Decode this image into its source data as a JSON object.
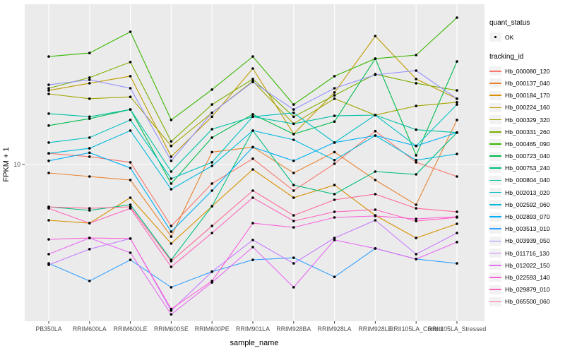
{
  "legend": {
    "quant_status_title": "quant_status",
    "ok_label": "OK",
    "tracking_title": "tracking_id"
  },
  "chart_data": {
    "type": "line",
    "title": "",
    "xlabel": "sample_name",
    "ylabel": "FPKM + 1",
    "y_scale": "log10",
    "ylim": [
      1.2,
      82
    ],
    "y_ticks": [
      10
    ],
    "y_tick_labels": [
      "10"
    ],
    "grid": "on",
    "legend_position": "right",
    "panel_bg": "#EBEBEB",
    "grid_color": "#FFFFFF",
    "tick_color": "#333333",
    "point_color": "#000000",
    "x_categories": [
      "PB350LA",
      "RRIM600LA",
      "RRIM600LE",
      "RRIM600SE",
      "RRIM600PE",
      "RRIM901LA",
      "RRIM928BA",
      "RRIM928LA",
      "RRIM928LE",
      "RRII105LA_Control",
      "RRII105LA_Stressed"
    ],
    "series": [
      {
        "name": "Hb_000080_120",
        "color": "#F8766D",
        "values": [
          11.6,
          11.1,
          10.3,
          4.41,
          7.76,
          10.8,
          7.06,
          10.1,
          15.6,
          10.3,
          8.52
        ]
      },
      {
        "name": "Hb_000137_040",
        "color": "#EA8331",
        "values": [
          8.93,
          8.52,
          8.13,
          3.83,
          11.8,
          12.6,
          8.93,
          11.8,
          8.13,
          5.85,
          18.1
        ]
      },
      {
        "name": "Hb_000184_170",
        "color": "#D89000",
        "values": [
          4.76,
          4.58,
          6.43,
          3.49,
          5.74,
          9.36,
          6.43,
          7.61,
          5.08,
          3.76,
          4.54
        ]
      },
      {
        "name": "Hb_000224_160",
        "color": "#C09B00",
        "values": [
          26.8,
          29.5,
          32.4,
          11.1,
          18.9,
          35.9,
          15.0,
          26.1,
          55.3,
          31.2,
          24.0
        ]
      },
      {
        "name": "Hb_000329_320",
        "color": "#A3A500",
        "values": [
          25.6,
          24.0,
          24.6,
          12.8,
          19.9,
          30.3,
          17.2,
          24.0,
          19.3,
          21.8,
          22.9
        ]
      },
      {
        "name": "Hb_000331_260",
        "color": "#7CAE00",
        "values": [
          27.6,
          31.8,
          39.1,
          13.6,
          22.2,
          31.2,
          18.9,
          25.1,
          33.3,
          29.5,
          26.8
        ]
      },
      {
        "name": "Hb_000465_090",
        "color": "#39B600",
        "values": [
          42.1,
          44.1,
          58.5,
          18.1,
          27.1,
          42.1,
          22.2,
          32.4,
          40.9,
          42.9,
          70.6
        ]
      },
      {
        "name": "Hb_000723_040",
        "color": "#00BB4E",
        "values": [
          16.8,
          18.4,
          20.8,
          7.76,
          14.3,
          19.5,
          15.0,
          17.7,
          40.9,
          11.3,
          39.4
        ]
      },
      {
        "name": "Hb_000753_240",
        "color": "#00BF7D",
        "values": [
          5.69,
          5.43,
          5.85,
          2.81,
          5.74,
          15.7,
          7.61,
          6.74,
          9.1,
          8.77,
          15.3
        ]
      },
      {
        "name": "Hb_000804_040",
        "color": "#00C1A3",
        "values": [
          19.7,
          18.9,
          20.8,
          9.1,
          16.0,
          18.9,
          17.2,
          19.1,
          19.3,
          15.9,
          15.3
        ]
      },
      {
        "name": "Hb_002013_020",
        "color": "#00BFC4",
        "values": [
          13.4,
          14.3,
          18.1,
          8.29,
          10.3,
          18.9,
          19.9,
          13.4,
          19.3,
          12.8,
          22.2
        ]
      },
      {
        "name": "Hb_002592_060",
        "color": "#00BADE",
        "values": [
          11.6,
          12.4,
          15.7,
          7.19,
          9.81,
          15.7,
          13.9,
          10.6,
          14.7,
          10.6,
          11.5
        ]
      },
      {
        "name": "Hb_002893_070",
        "color": "#00B0F6",
        "values": [
          10.5,
          11.7,
          9.54,
          4.09,
          7.06,
          12.6,
          10.5,
          13.4,
          14.7,
          12.8,
          15.3
        ]
      },
      {
        "name": "Hb_003513_010",
        "color": "#35A2FF",
        "values": [
          2.68,
          2.12,
          2.81,
          1.95,
          2.4,
          2.81,
          2.89,
          2.24,
          3.27,
          2.84,
          2.68
        ]
      },
      {
        "name": "Hb_003939_050",
        "color": "#9590FF",
        "values": [
          28.9,
          30.9,
          27.6,
          10.5,
          19.9,
          30.0,
          20.8,
          27.6,
          33.0,
          34.9,
          24.0
        ]
      },
      {
        "name": "Hb_011716_130",
        "color": "#C77CFF",
        "values": [
          2.63,
          3.24,
          3.73,
          1.43,
          2.4,
          3.66,
          2.68,
          3.76,
          4.76,
          3.03,
          4.02
        ]
      },
      {
        "name": "Hb_012022_150",
        "color": "#E76BF3",
        "values": [
          3.03,
          3.76,
          3.09,
          1.36,
          2.08,
          3.33,
          1.95,
          3.66,
          3.27,
          2.84,
          3.56
        ]
      },
      {
        "name": "Hb_022593_140",
        "color": "#FA62DB",
        "values": [
          3.69,
          3.76,
          3.73,
          1.46,
          2.12,
          4.58,
          4.33,
          4.94,
          5.04,
          4.85,
          4.99
        ]
      },
      {
        "name": "Hb_029879_010",
        "color": "#FF62BC",
        "values": [
          5.58,
          4.58,
          5.58,
          2.56,
          4.02,
          6.43,
          4.71,
          5.33,
          5.48,
          4.71,
          4.94
        ]
      },
      {
        "name": "Hb_065500_060",
        "color": "#FF6A98",
        "values": [
          5.69,
          5.58,
          5.69,
          2.76,
          4.41,
          7.06,
          5.08,
          6.25,
          6.74,
          5.58,
          5.33
        ]
      }
    ]
  }
}
